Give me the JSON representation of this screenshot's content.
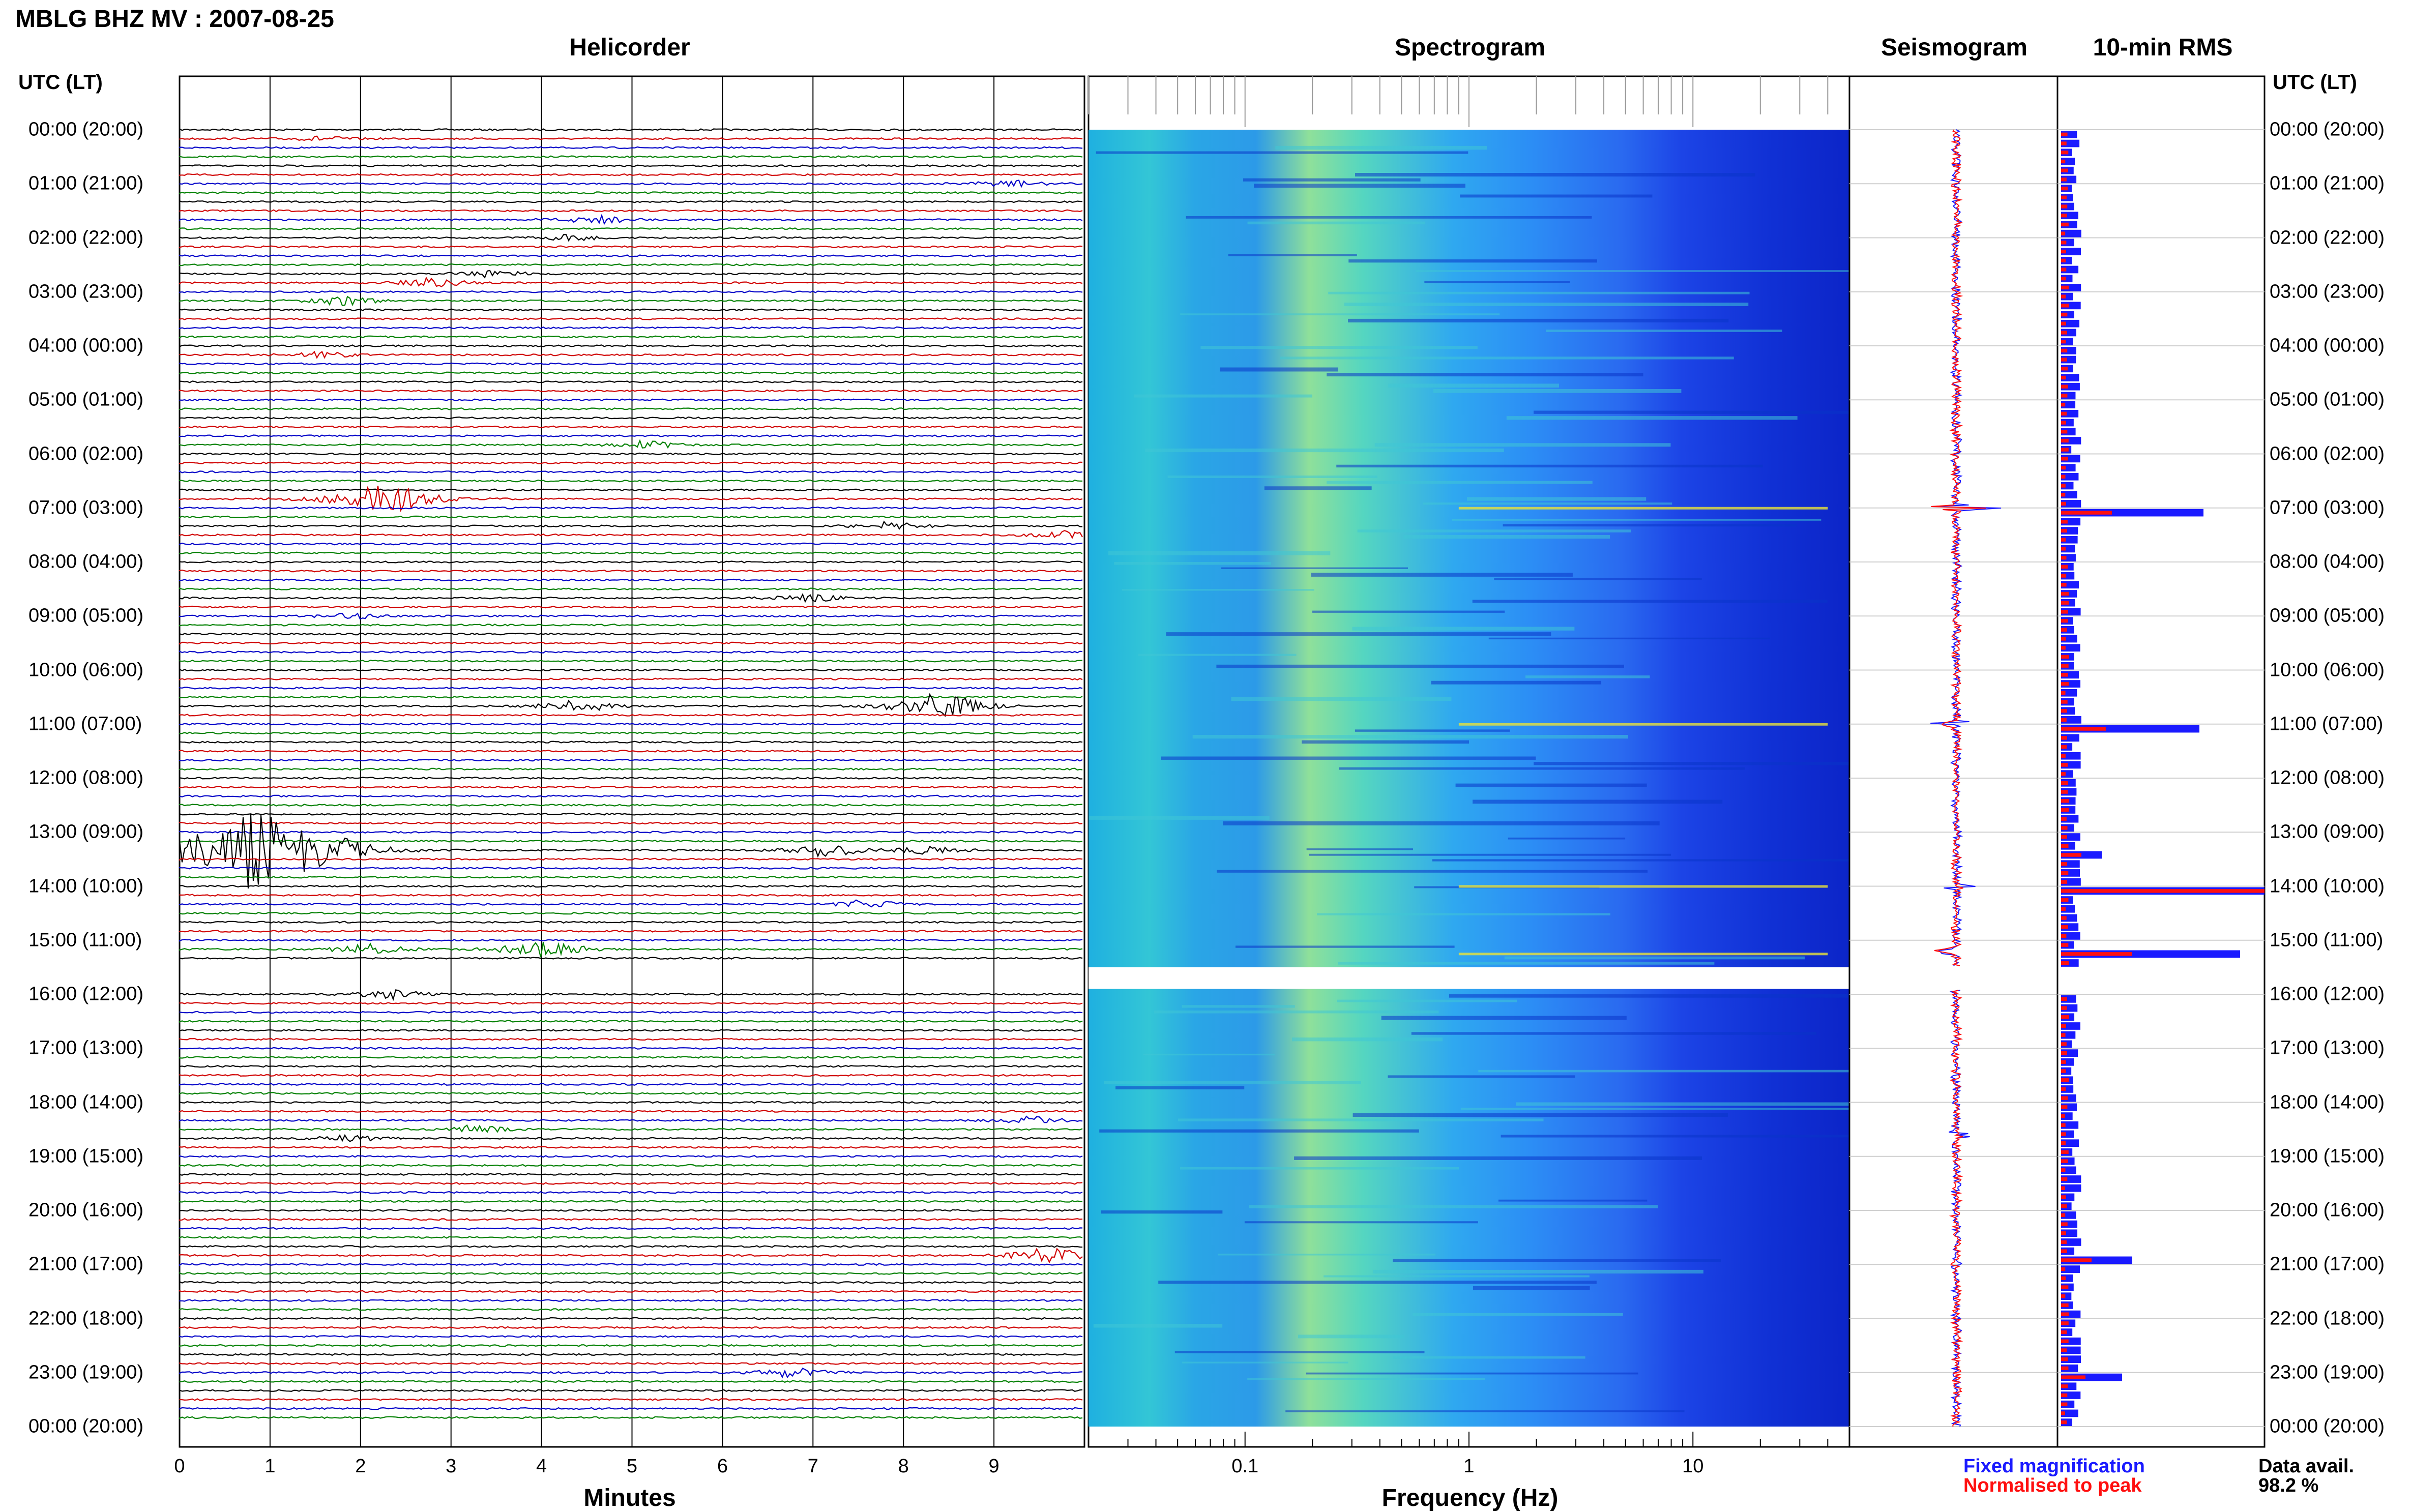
{
  "title": "MBLG BHZ MV : 2007-08-25",
  "panels": {
    "helicorder": "Helicorder",
    "spectrogram": "Spectrogram",
    "seismogram": "Seismogram",
    "rms": "10-min RMS"
  },
  "utc_header_left": "UTC (LT)",
  "utc_header_right": "UTC (LT)",
  "hour_labels": [
    "00:00 (20:00)",
    "01:00 (21:00)",
    "02:00 (22:00)",
    "03:00 (23:00)",
    "04:00 (00:00)",
    "05:00 (01:00)",
    "06:00 (02:00)",
    "07:00 (03:00)",
    "08:00 (04:00)",
    "09:00 (05:00)",
    "10:00 (06:00)",
    "11:00 (07:00)",
    "12:00 (08:00)",
    "13:00 (09:00)",
    "14:00 (10:00)",
    "15:00 (11:00)",
    "16:00 (12:00)",
    "17:00 (13:00)",
    "18:00 (14:00)",
    "19:00 (15:00)",
    "20:00 (16:00)",
    "21:00 (17:00)",
    "22:00 (18:00)",
    "23:00 (19:00)",
    "00:00 (20:00)"
  ],
  "minutes_axis": {
    "label": "Minutes",
    "ticks": [
      "0",
      "1",
      "2",
      "3",
      "4",
      "5",
      "6",
      "7",
      "8",
      "9"
    ]
  },
  "frequency_axis": {
    "label": "Frequency (Hz)",
    "ticks": [
      "0.1",
      "1",
      "10"
    ]
  },
  "legend": {
    "fixed": "Fixed magnification",
    "peak": "Normalised to peak"
  },
  "availability": {
    "label": "Data avail.",
    "value": "98.2 %"
  },
  "colors": {
    "trace_cycle": [
      "#000000",
      "#d00000",
      "#0000c8",
      "#008000"
    ],
    "fixed": "#1a1aff",
    "peak": "#ff1010"
  },
  "chart_data": [
    {
      "type": "line",
      "name": "helicorder",
      "x_unit": "minutes",
      "xlim": [
        0,
        10
      ],
      "rows_per_hour": 6,
      "events": [
        {
          "hour": 0.1,
          "minute": 1.5,
          "amp": 0.3
        },
        {
          "hour": 1.0,
          "minute": 9.1,
          "amp": 0.5
        },
        {
          "hour": 1.6,
          "minute": 4.5,
          "amp": 0.6
        },
        {
          "hour": 2.0,
          "minute": 4.2,
          "amp": 0.4
        },
        {
          "hour": 2.6,
          "minute": 3.4,
          "amp": 0.5
        },
        {
          "hour": 2.9,
          "minute": 2.7,
          "amp": 0.6
        },
        {
          "hour": 3.1,
          "minute": 1.7,
          "amp": 0.6
        },
        {
          "hour": 4.1,
          "minute": 1.5,
          "amp": 0.4
        },
        {
          "hour": 5.8,
          "minute": 5.1,
          "amp": 0.5
        },
        {
          "hour": 6.8,
          "minute": 2.1,
          "amp": 2.2
        },
        {
          "hour": 7.3,
          "minute": 7.8,
          "amp": 0.5
        },
        {
          "hour": 7.5,
          "minute": 9.8,
          "amp": 0.6
        },
        {
          "hour": 8.6,
          "minute": 6.9,
          "amp": 0.5
        },
        {
          "hour": 9.0,
          "minute": 1.8,
          "amp": 0.4
        },
        {
          "hour": 10.6,
          "minute": 4.3,
          "amp": 0.8
        },
        {
          "hour": 10.6,
          "minute": 8.3,
          "amp": 1.6
        },
        {
          "hour": 13.3,
          "minute": 0.7,
          "amp": 5.5
        },
        {
          "hour": 13.3,
          "minute": 7.1,
          "amp": 0.8
        },
        {
          "hour": 13.4,
          "minute": 8.2,
          "amp": 0.5
        },
        {
          "hour": 14.3,
          "minute": 7.5,
          "amp": 0.5
        },
        {
          "hour": 15.1,
          "minute": 3.9,
          "amp": 1.2
        },
        {
          "hour": 15.1,
          "minute": 2.0,
          "amp": 0.7
        },
        {
          "hour": 16.0,
          "minute": 2.3,
          "amp": 0.6
        },
        {
          "hour": 18.5,
          "minute": 3.2,
          "amp": 0.5
        },
        {
          "hour": 18.4,
          "minute": 9.3,
          "amp": 0.5
        },
        {
          "hour": 18.6,
          "minute": 1.8,
          "amp": 0.4
        },
        {
          "hour": 20.9,
          "minute": 9.5,
          "amp": 1.0
        },
        {
          "hour": 23.0,
          "minute": 6.7,
          "amp": 0.6
        }
      ],
      "gap_hours": [
        15.5,
        15.9
      ]
    },
    {
      "type": "heatmap",
      "name": "spectrogram",
      "x_scale": "log",
      "xlim": [
        0.02,
        50
      ],
      "ylim_hours": [
        0,
        24
      ],
      "gap_hours": [
        15.5,
        15.9
      ]
    },
    {
      "type": "line",
      "name": "seismogram",
      "spikes": [
        {
          "hour": 7.0,
          "amp": 1.0
        },
        {
          "hour": 11.0,
          "amp": 0.55
        },
        {
          "hour": 14.0,
          "amp": 0.9
        },
        {
          "hour": 15.2,
          "amp": 0.65
        },
        {
          "hour": 18.6,
          "amp": 0.3
        }
      ]
    },
    {
      "type": "bar",
      "name": "10-min RMS",
      "peaks": [
        {
          "hour": 7.0,
          "fixed": 0.7,
          "peak": 0.25
        },
        {
          "hour": 11.0,
          "fixed": 0.68,
          "peak": 0.22
        },
        {
          "hour": 13.4,
          "fixed": 0.2,
          "peak": 0.1
        },
        {
          "hour": 14.0,
          "fixed": 1.0,
          "peak": 1.0
        },
        {
          "hour": 15.2,
          "fixed": 0.88,
          "peak": 0.35
        },
        {
          "hour": 20.9,
          "fixed": 0.35,
          "peak": 0.15
        },
        {
          "hour": 23.0,
          "fixed": 0.3,
          "peak": 0.12
        }
      ]
    }
  ]
}
